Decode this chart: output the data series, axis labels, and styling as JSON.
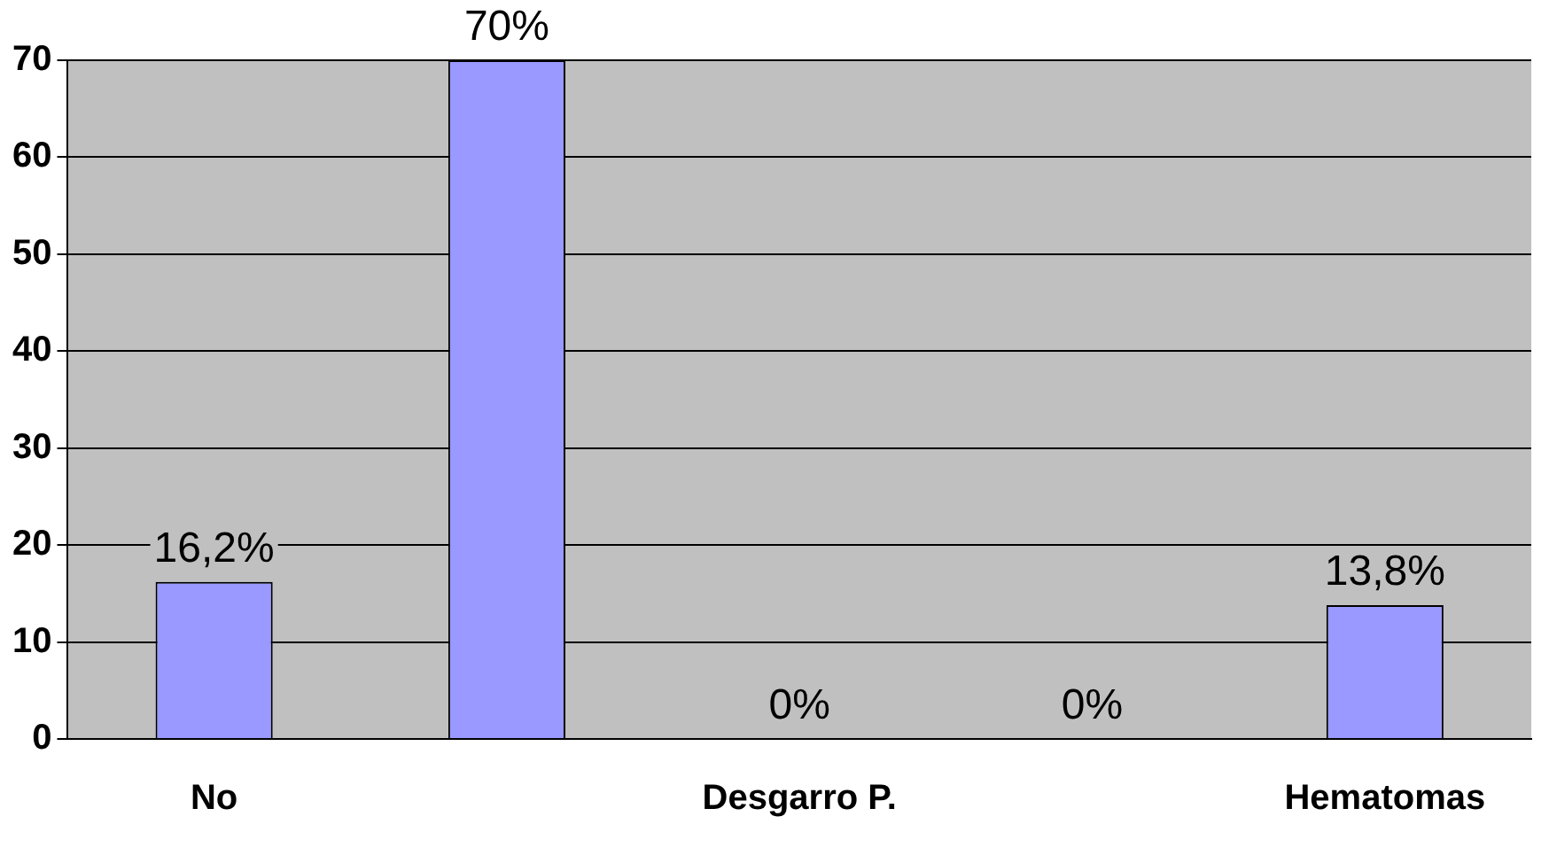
{
  "chart_data": {
    "type": "bar",
    "categories": [
      "No",
      null,
      "Desgarro P.",
      null,
      "Hematomas"
    ],
    "values": [
      16.2,
      70,
      0,
      0,
      13.8
    ],
    "value_labels": [
      "16,2%",
      "70%",
      "0%",
      "0%",
      "13,8%"
    ],
    "color": "#9999ff",
    "ylim": [
      0,
      70
    ],
    "yticks": [
      0,
      10,
      20,
      30,
      40,
      50,
      60,
      70
    ],
    "grid": "y",
    "legend": false
  }
}
